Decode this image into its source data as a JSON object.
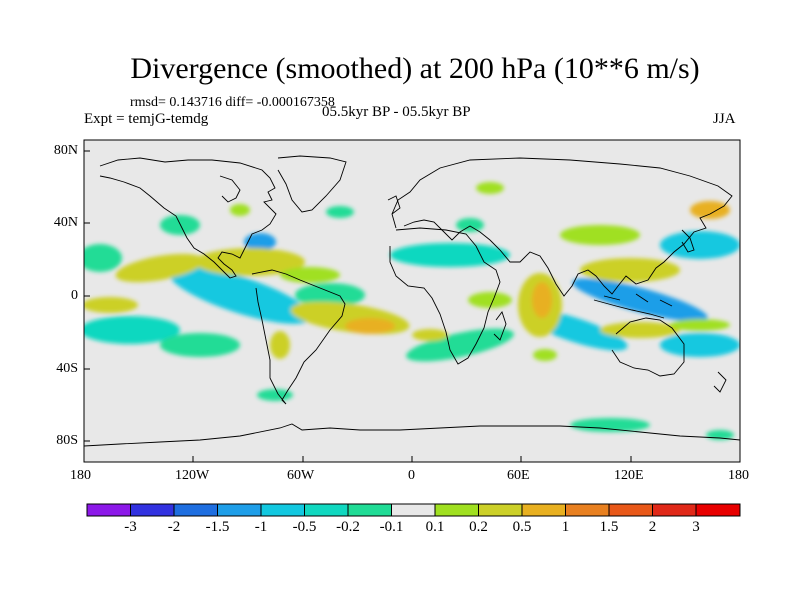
{
  "title": "Divergence (smoothed) at 200 hPa (10**6 m/s)",
  "stats": "rmsd= 0.143716   diff= -0.000167358",
  "expt": "Expt = temjG-temdg",
  "period": "05.5kyr BP - 05.5kyr BP",
  "season": "JJA",
  "chart_data": {
    "type": "map-contour",
    "variable": "Divergence (smoothed) at 200 hPa",
    "units": "10**6 m/s",
    "projection": "cylindrical equidistant",
    "x_ticks": [
      "180",
      "120W",
      "60W",
      "0",
      "60E",
      "120E",
      "180"
    ],
    "y_ticks": [
      "80N",
      "40N",
      "0",
      "40S",
      "80S"
    ],
    "levels": [
      "-3",
      "-2",
      "-1.5",
      "-1",
      "-0.5",
      "-0.2",
      "-0.1",
      "0.1",
      "0.2",
      "0.5",
      "1",
      "1.5",
      "2",
      "3"
    ],
    "colors": [
      "#8c18e8",
      "#3232e0",
      "#1e6ee0",
      "#1e9ee8",
      "#12c8e0",
      "#10d8c0",
      "#20dc96",
      "#e8e8e8",
      "#a0e020",
      "#ccd028",
      "#e8b020",
      "#e88020",
      "#e85818",
      "#e02818",
      "#e80000"
    ],
    "rmsd": 0.143716,
    "diff": -0.000167358,
    "season": "JJA"
  }
}
